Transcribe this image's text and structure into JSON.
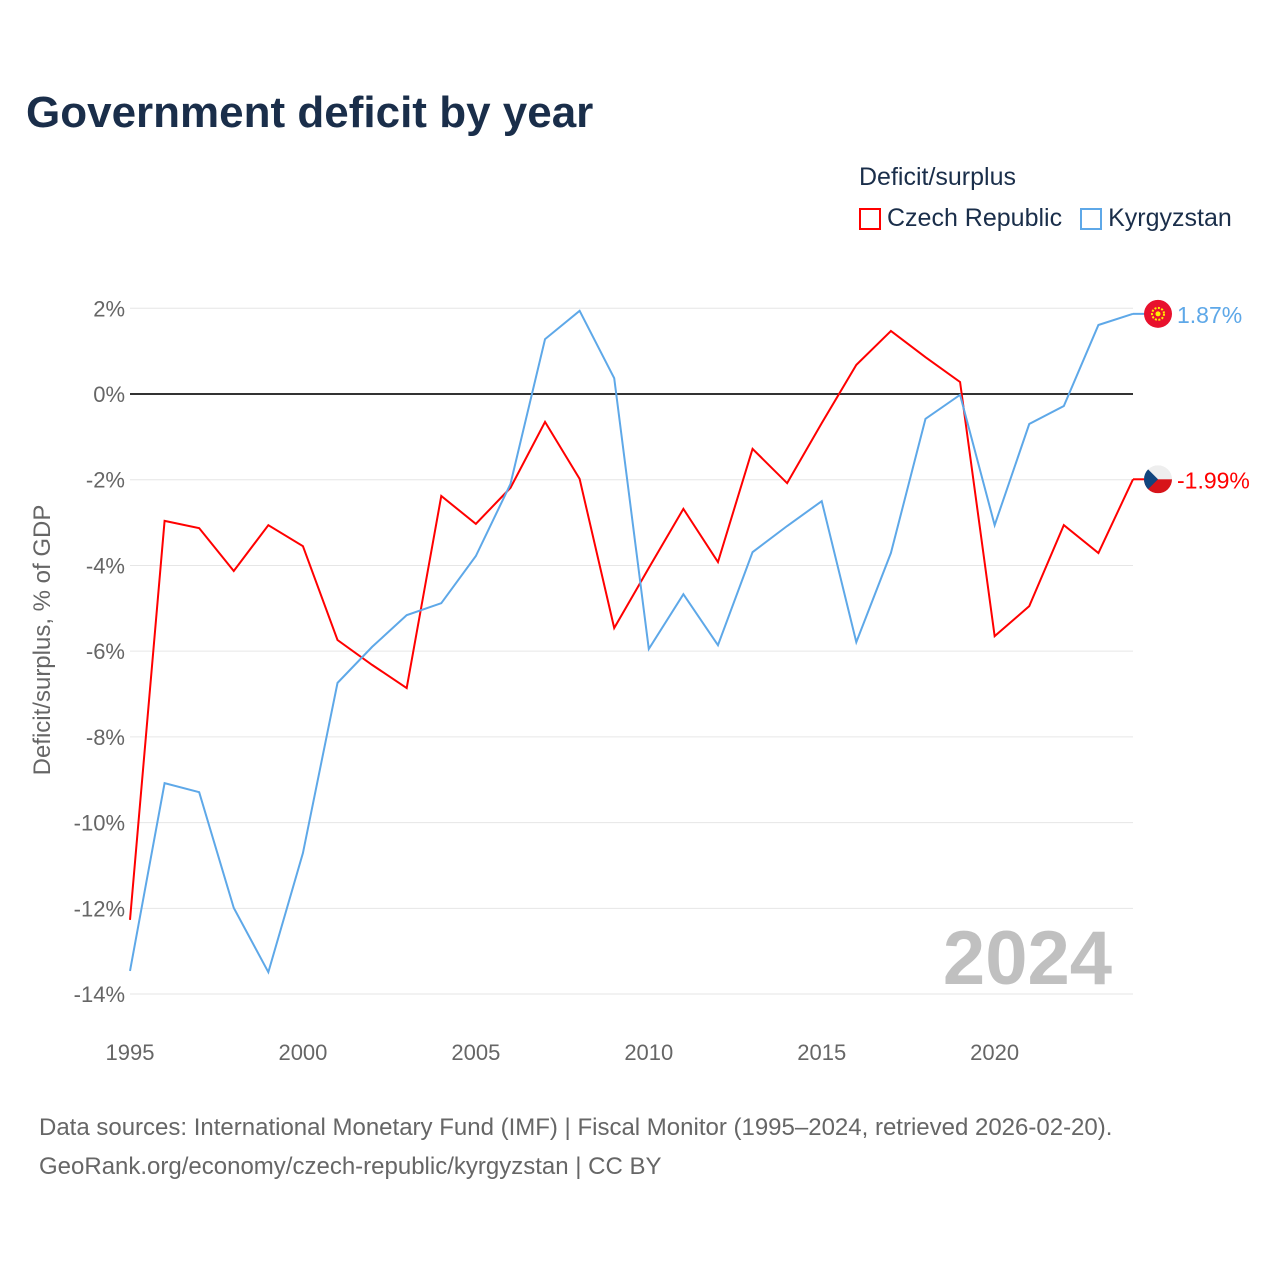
{
  "title": "Government deficit by year",
  "legend": {
    "title": "Deficit/surplus",
    "items": [
      "Czech Republic",
      "Kyrgyzstan"
    ]
  },
  "colors": {
    "czech": "#ff0000",
    "kyrgyz": "#5ea8e8"
  },
  "year_watermark": "2024",
  "source": {
    "line1": "Data sources: International Monetary Fund (IMF) | Fiscal Monitor (1995–2024, retrieved 2026-02-20).",
    "line2": "GeoRank.org/economy/czech-republic/kyrgyzstan | CC BY"
  },
  "chart_data": {
    "type": "line",
    "title": "Government deficit by year",
    "xlabel": "",
    "ylabel": "Deficit/surplus, % of GDP",
    "xlim": [
      1995,
      2024
    ],
    "ylim": [
      -14,
      2
    ],
    "xticks": [
      1995,
      2000,
      2005,
      2010,
      2015,
      2020
    ],
    "yticks": [
      2,
      0,
      -2,
      -4,
      -6,
      -8,
      -10,
      -12,
      -14
    ],
    "ytick_labels": [
      "2%",
      "0%",
      "-2%",
      "-4%",
      "-6%",
      "-8%",
      "-10%",
      "-12%",
      "-14%"
    ],
    "x": [
      1995,
      1996,
      1997,
      1998,
      1999,
      2000,
      2001,
      2002,
      2003,
      2004,
      2005,
      2006,
      2007,
      2008,
      2009,
      2010,
      2011,
      2012,
      2013,
      2014,
      2015,
      2016,
      2017,
      2018,
      2019,
      2020,
      2021,
      2022,
      2023,
      2024
    ],
    "series": [
      {
        "name": "Czech Republic",
        "color": "#ff0000",
        "end_label": "-1.99%",
        "values": [
          -12.27,
          -2.96,
          -3.13,
          -4.13,
          -3.06,
          -3.55,
          -5.74,
          -6.32,
          -6.86,
          -2.38,
          -3.03,
          -2.19,
          -0.65,
          -1.98,
          -5.46,
          -4.06,
          -2.68,
          -3.92,
          -1.28,
          -2.08,
          -0.68,
          0.68,
          1.47,
          0.86,
          0.28,
          -5.65,
          -4.95,
          -3.06,
          -3.71,
          -1.99
        ]
      },
      {
        "name": "Kyrgyzstan",
        "color": "#5ea8e8",
        "end_label": "1.87%",
        "values": [
          -13.46,
          -9.08,
          -9.29,
          -11.99,
          -13.49,
          -10.71,
          -6.74,
          -5.9,
          -5.16,
          -4.88,
          -3.78,
          -2.1,
          1.28,
          1.94,
          0.37,
          -5.95,
          -4.67,
          -5.86,
          -3.69,
          -3.08,
          -2.5,
          -5.79,
          -3.71,
          -0.58,
          -0.02,
          -3.06,
          -0.7,
          -0.28,
          1.61,
          1.87
        ]
      }
    ]
  }
}
